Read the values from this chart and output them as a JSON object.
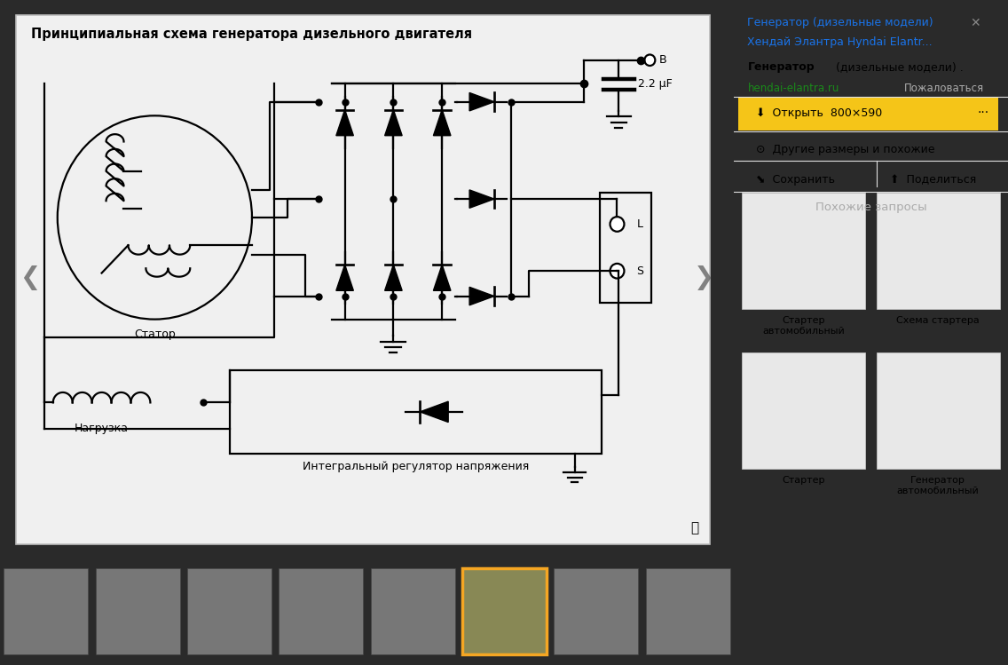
{
  "bg_outer": "#2a2a2a",
  "bg_main_panel": "#111111",
  "bg_diagram": "#d8d8d8",
  "bg_right_panel": "#ffffff",
  "title_diagram": "Принципиальная схема генератора дизельного двигателя",
  "right_title_blue": "Генератор (дизельные модели)\nХендай Элантра Hyndai Elantr...",
  "right_link": "hendai-elantra.ru",
  "right_complaint": "Пожаловаться",
  "btn_open": "Открыть  800×590",
  "btn_other": "Другие размеры и похожие",
  "btn_save": "Сохранить",
  "btn_share": "Поделиться",
  "section_similar": "Похожие запросы",
  "similar_labels": [
    "Стартер\nавтомобильный",
    "Схема стартера",
    "Стартер",
    "Генератор\nавтомобильный"
  ],
  "label_stator": "Статор",
  "label_load": "Нагрузка",
  "label_regulator": "Интегральный регулятор напряжения",
  "label_capacitor": "2.2 μF",
  "label_B": "B",
  "label_L": "L",
  "label_S": "S",
  "highlight_thumbnail": 5,
  "line_color": "#000000",
  "yellow_btn_color": "#f5c518",
  "blue_link_color": "#1a73e8",
  "green_link_color": "#1a8a1a",
  "divider_color": "#e0e0e0",
  "thumbnail_highlight_color": "#f5a623",
  "nav_arrow_color": "#666666"
}
